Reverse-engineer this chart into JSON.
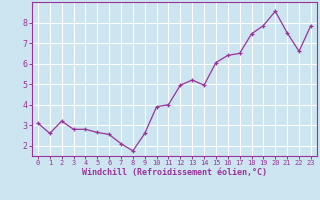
{
  "x": [
    0,
    1,
    2,
    3,
    4,
    5,
    6,
    7,
    8,
    9,
    10,
    11,
    12,
    13,
    14,
    15,
    16,
    17,
    18,
    19,
    20,
    21,
    22,
    23
  ],
  "y": [
    3.1,
    2.6,
    3.2,
    2.8,
    2.8,
    2.65,
    2.55,
    2.1,
    1.75,
    2.6,
    3.9,
    4.0,
    4.95,
    5.2,
    4.95,
    6.05,
    6.4,
    6.5,
    7.45,
    7.85,
    8.55,
    7.5,
    6.6,
    7.85
  ],
  "line_color": "#993399",
  "marker": "+",
  "xlabel": "Windchill (Refroidissement éolien,°C)",
  "ylim": [
    1.5,
    9.0
  ],
  "xlim": [
    -0.5,
    23.5
  ],
  "yticks": [
    2,
    3,
    4,
    5,
    6,
    7,
    8
  ],
  "xticks": [
    0,
    1,
    2,
    3,
    4,
    5,
    6,
    7,
    8,
    9,
    10,
    11,
    12,
    13,
    14,
    15,
    16,
    17,
    18,
    19,
    20,
    21,
    22,
    23
  ],
  "background_color": "#cce5f0",
  "grid_color": "#ffffff",
  "line_label_color": "#993399",
  "spine_color": "#993399",
  "tick_color": "#993399",
  "font_family": "monospace",
  "xlabel_fontsize": 6.0,
  "tick_fontsize_x": 5.0,
  "tick_fontsize_y": 6.0,
  "marker_size": 3,
  "line_width": 0.9
}
